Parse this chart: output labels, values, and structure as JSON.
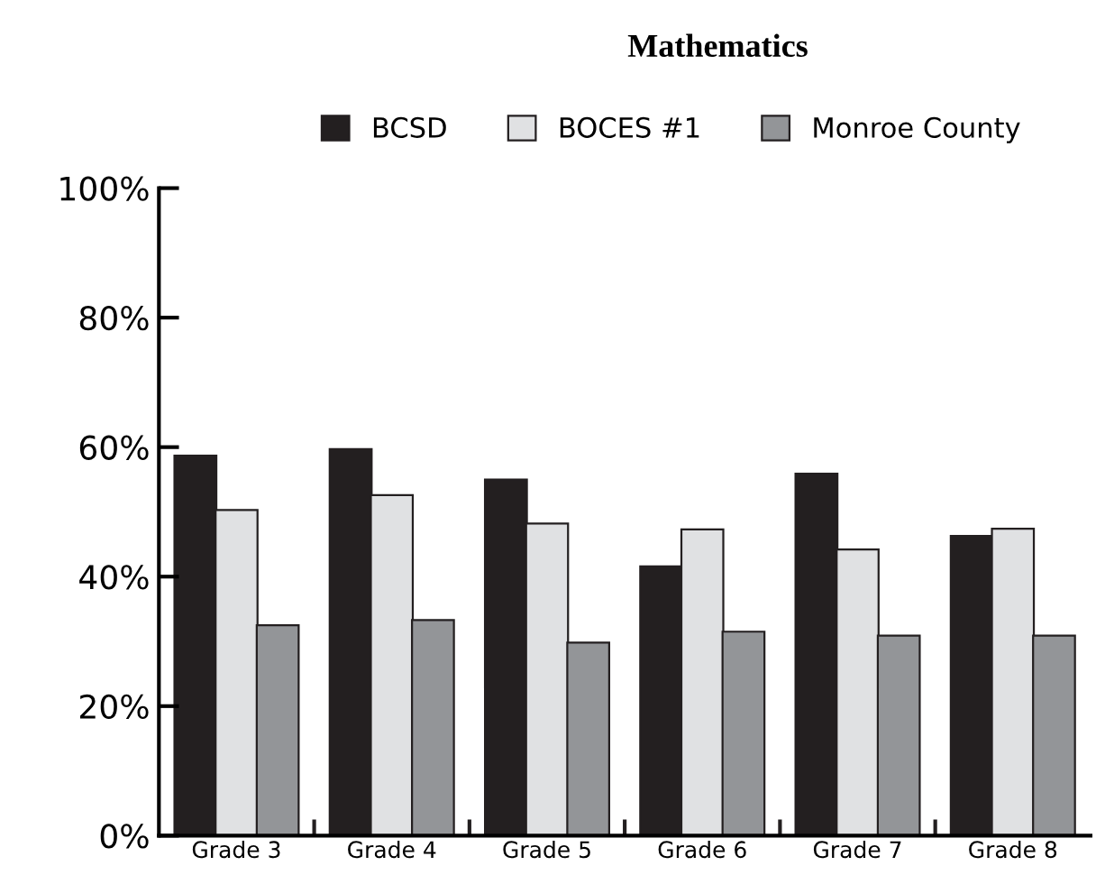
{
  "chart_data": {
    "type": "bar",
    "title": "Mathematics",
    "categories": [
      "Grade 3",
      "Grade 4",
      "Grade 5",
      "Grade 6",
      "Grade 7",
      "Grade 8"
    ],
    "series": [
      {
        "name": "BCSD",
        "color": "#231f20",
        "values": [
          58.7,
          59.7,
          55.0,
          41.6,
          55.9,
          46.3
        ]
      },
      {
        "name": "BOCES #1",
        "color": "#e0e1e3",
        "values": [
          50.3,
          52.6,
          48.2,
          47.3,
          44.2,
          47.4
        ]
      },
      {
        "name": "Monroe County",
        "color": "#939598",
        "values": [
          32.5,
          33.3,
          29.8,
          31.5,
          30.9,
          30.9
        ]
      }
    ],
    "ylim": [
      0,
      100
    ],
    "yticks": [
      {
        "value": 0,
        "label": "0%"
      },
      {
        "value": 20,
        "label": "20%"
      },
      {
        "value": 40,
        "label": "40%"
      },
      {
        "value": 60,
        "label": "60%"
      },
      {
        "value": 80,
        "label": "80%"
      },
      {
        "value": 100,
        "label": "100%"
      }
    ],
    "grid": false,
    "legend": "top"
  }
}
